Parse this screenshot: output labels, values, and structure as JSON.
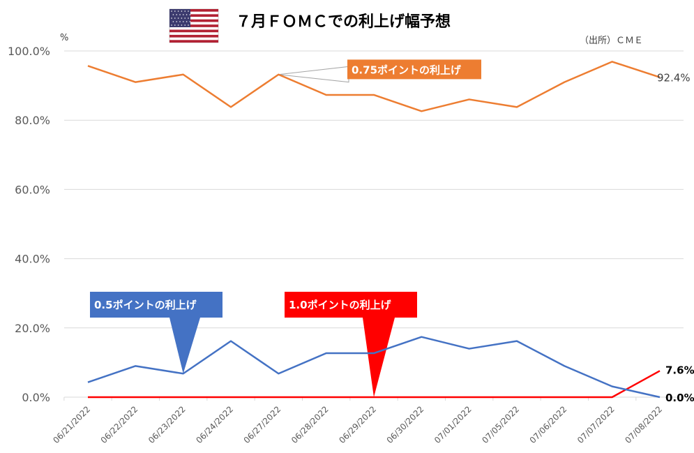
{
  "header": {
    "title": "７月ＦＯＭＣでの利上げ幅予想",
    "source": "（出所）ＣＭＥ",
    "unit": "%",
    "flag_icon": "us-flag-icon"
  },
  "colors": {
    "orange": "#ED7D31",
    "blue": "#4472C4",
    "red": "#FF0000",
    "grid": "#D9D9D9"
  },
  "chart_data": {
    "type": "line",
    "categories": [
      "06/21/2022",
      "06/22/2022",
      "06/23/2022",
      "06/24/2022",
      "06/27/2022",
      "06/28/2022",
      "06/29/2022",
      "06/30/2022",
      "07/01/2022",
      "07/05/2022",
      "07/06/2022",
      "07/07/2022",
      "07/08/2022"
    ],
    "ylim": [
      0,
      100
    ],
    "yticks": [
      "0.0%",
      "20.0%",
      "40.0%",
      "60.0%",
      "80.0%",
      "100.0%"
    ],
    "grid": true,
    "series": [
      {
        "name": "0.75ポイントの利上げ",
        "color": "#ED7D31",
        "end_label": "92.4%",
        "values": [
          95.7,
          91.0,
          93.2,
          83.8,
          93.2,
          87.3,
          87.3,
          82.6,
          86.0,
          83.8,
          91.0,
          96.9,
          92.4
        ]
      },
      {
        "name": "0.5ポイントの利上げ",
        "color": "#4472C4",
        "end_label": "0.0%",
        "values": [
          4.3,
          9.0,
          6.8,
          16.2,
          6.8,
          12.7,
          12.7,
          17.4,
          14.0,
          16.2,
          9.0,
          3.1,
          0.0
        ]
      },
      {
        "name": "1.0ポイントの利上げ",
        "color": "#FF0000",
        "end_label": "7.6%",
        "values": [
          0,
          0,
          0,
          0,
          0,
          0,
          0,
          0,
          0,
          0,
          0,
          0,
          7.6
        ]
      }
    ],
    "callouts": [
      {
        "text": "0.75ポイントの利上げ",
        "series": 0,
        "color": "#ED7D31"
      },
      {
        "text": "0.5ポイントの利上げ",
        "series": 1,
        "color": "#4472C4"
      },
      {
        "text": "1.0ポイントの利上げ",
        "series": 2,
        "color": "#FF0000"
      }
    ]
  }
}
